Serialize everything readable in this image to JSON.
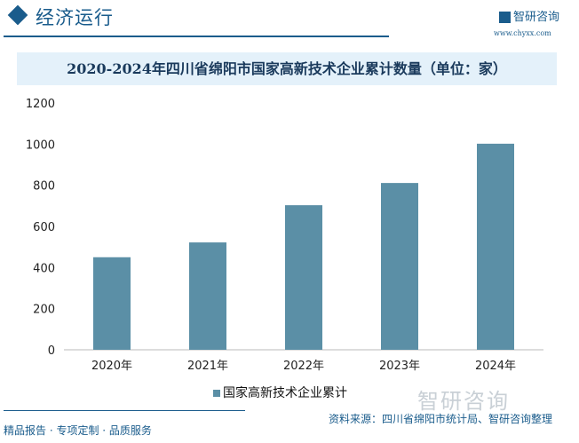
{
  "header": {
    "section": "经济运行",
    "logo": "智研咨询",
    "url": "www.chyxx.com"
  },
  "footer": {
    "tagline": "精品报告 · 专项定制 · 品质服务",
    "source": "资料来源：四川省绵阳市统计局、智研咨询整理",
    "watermark": "智研咨询"
  },
  "chart_data": {
    "type": "bar",
    "title": "2020-2024年四川省绵阳市国家高新技术企业累计数量（单位：家）",
    "categories": [
      "2020年",
      "2021年",
      "2022年",
      "2023年",
      "2024年"
    ],
    "series": [
      {
        "name": "国家高新技术企业累计",
        "values": [
          450,
          522,
          703,
          811,
          1002
        ],
        "color": "#5b8fa6"
      }
    ],
    "ylim": [
      0,
      1200
    ],
    "yticks": [
      0,
      200,
      400,
      600,
      800,
      1000,
      1200
    ],
    "legend": "bottom",
    "grid": false
  }
}
